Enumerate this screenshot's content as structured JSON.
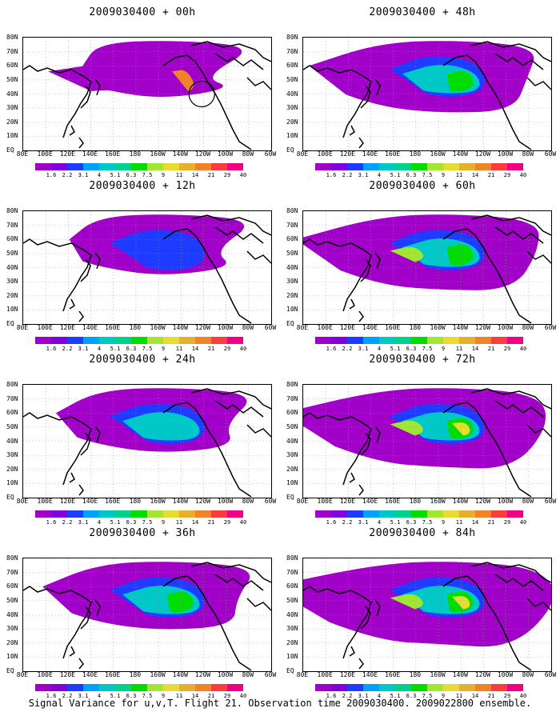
{
  "panels": [
    {
      "title": "2009030400 + 00h",
      "intensity": 0
    },
    {
      "title": "2009030400 + 48h",
      "intensity": 4
    },
    {
      "title": "2009030400 + 12h",
      "intensity": 1
    },
    {
      "title": "2009030400 + 60h",
      "intensity": 5
    },
    {
      "title": "2009030400 + 24h",
      "intensity": 2
    },
    {
      "title": "2009030400 + 72h",
      "intensity": 6
    },
    {
      "title": "2009030400 + 36h",
      "intensity": 3
    },
    {
      "title": "2009030400 + 84h",
      "intensity": 7
    }
  ],
  "lat_labels": [
    "80N",
    "70N",
    "60N",
    "50N",
    "40N",
    "30N",
    "20N",
    "10N",
    "EQ"
  ],
  "lon_labels": [
    "80E",
    "100E",
    "120E",
    "140E",
    "160E",
    "180",
    "160W",
    "140W",
    "120W",
    "100W",
    "80W",
    "60W"
  ],
  "colorbar": {
    "colors": [
      "#a000c8",
      "#8200dc",
      "#1e3cff",
      "#00a0ff",
      "#00c8c8",
      "#00d28c",
      "#00dc00",
      "#a0e632",
      "#e6dc32",
      "#e6af2d",
      "#f08228",
      "#fa3c3c",
      "#f00082"
    ],
    "labels": [
      "1.6",
      "2.2",
      "3.1",
      "4",
      "5.1",
      "6.3",
      "7.5",
      "9",
      "11",
      "14",
      "21",
      "29",
      "40"
    ]
  },
  "caption": "Signal Variance for u,v,T. Flight 21. Observation time 2009030400. 2009022800 ensemble."
}
